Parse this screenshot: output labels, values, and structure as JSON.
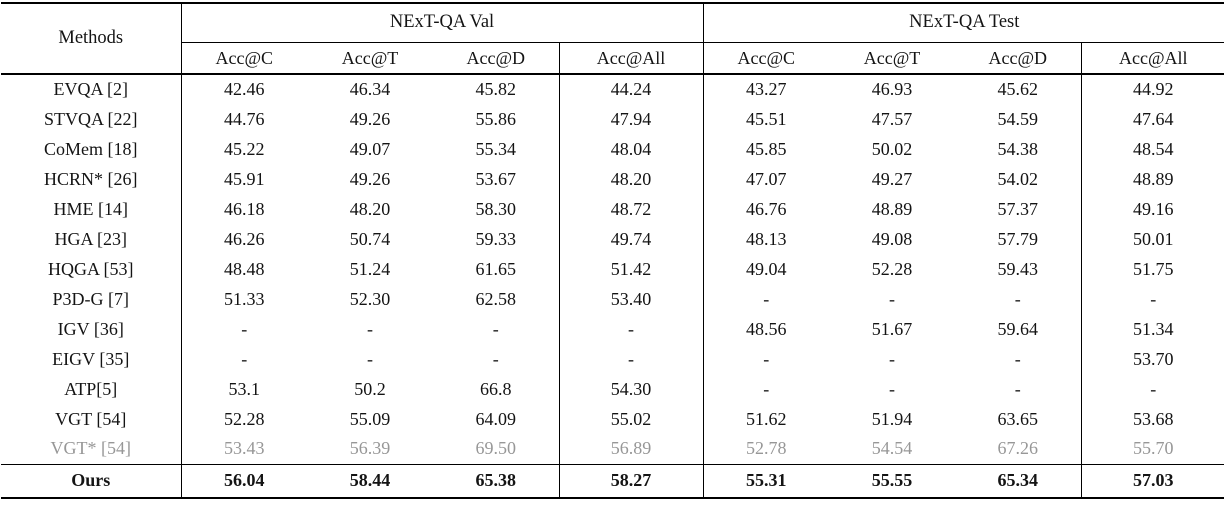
{
  "colors": {
    "text": "#141414",
    "dimmed_row_text": "#979797",
    "rule": "#000000",
    "background": "#ffffff"
  },
  "table": {
    "methods_header": "Methods",
    "groups": [
      {
        "label": "NExT-QA Val"
      },
      {
        "label": "NExT-QA Test"
      }
    ],
    "subcolumns": [
      "Acc@C",
      "Acc@T",
      "Acc@D",
      "Acc@All",
      "Acc@C",
      "Acc@T",
      "Acc@D",
      "Acc@All"
    ],
    "rows": [
      {
        "method": "EVQA [2]",
        "emphasis": "none",
        "values": [
          "42.46",
          "46.34",
          "45.82",
          "44.24",
          "43.27",
          "46.93",
          "45.62",
          "44.92"
        ]
      },
      {
        "method": "STVQA [22]",
        "emphasis": "none",
        "values": [
          "44.76",
          "49.26",
          "55.86",
          "47.94",
          "45.51",
          "47.57",
          "54.59",
          "47.64"
        ]
      },
      {
        "method": "CoMem [18]",
        "emphasis": "none",
        "values": [
          "45.22",
          "49.07",
          "55.34",
          "48.04",
          "45.85",
          "50.02",
          "54.38",
          "48.54"
        ]
      },
      {
        "method": "HCRN* [26]",
        "emphasis": "none",
        "values": [
          "45.91",
          "49.26",
          "53.67",
          "48.20",
          "47.07",
          "49.27",
          "54.02",
          "48.89"
        ]
      },
      {
        "method": "HME [14]",
        "emphasis": "none",
        "values": [
          "46.18",
          "48.20",
          "58.30",
          "48.72",
          "46.76",
          "48.89",
          "57.37",
          "49.16"
        ]
      },
      {
        "method": "HGA [23]",
        "emphasis": "none",
        "values": [
          "46.26",
          "50.74",
          "59.33",
          "49.74",
          "48.13",
          "49.08",
          "57.79",
          "50.01"
        ]
      },
      {
        "method": "HQGA [53]",
        "emphasis": "none",
        "values": [
          "48.48",
          "51.24",
          "61.65",
          "51.42",
          "49.04",
          "52.28",
          "59.43",
          "51.75"
        ]
      },
      {
        "method": "P3D-G [7]",
        "emphasis": "none",
        "values": [
          "51.33",
          "52.30",
          "62.58",
          "53.40",
          "-",
          "-",
          "-",
          "-"
        ]
      },
      {
        "method": "IGV [36]",
        "emphasis": "none",
        "values": [
          "-",
          "-",
          "-",
          "-",
          "48.56",
          "51.67",
          "59.64",
          "51.34"
        ]
      },
      {
        "method": "EIGV [35]",
        "emphasis": "none",
        "values": [
          "-",
          "-",
          "-",
          "-",
          "-",
          "-",
          "-",
          "53.70"
        ]
      },
      {
        "method": "ATP[5]",
        "emphasis": "none",
        "values": [
          "53.1",
          "50.2",
          "66.8",
          "54.30",
          "-",
          "-",
          "-",
          "-"
        ]
      },
      {
        "method": "VGT [54]",
        "emphasis": "none",
        "values": [
          "52.28",
          "55.09",
          "64.09",
          "55.02",
          "51.62",
          "51.94",
          "63.65",
          "53.68"
        ]
      },
      {
        "method": "VGT* [54]",
        "emphasis": "dimmed",
        "values": [
          "53.43",
          "56.39",
          "69.50",
          "56.89",
          "52.78",
          "54.54",
          "67.26",
          "55.70"
        ]
      },
      {
        "method": "Ours",
        "emphasis": "bold",
        "values": [
          "56.04",
          "58.44",
          "65.38",
          "58.27",
          "55.31",
          "55.55",
          "65.34",
          "57.03"
        ]
      }
    ]
  }
}
